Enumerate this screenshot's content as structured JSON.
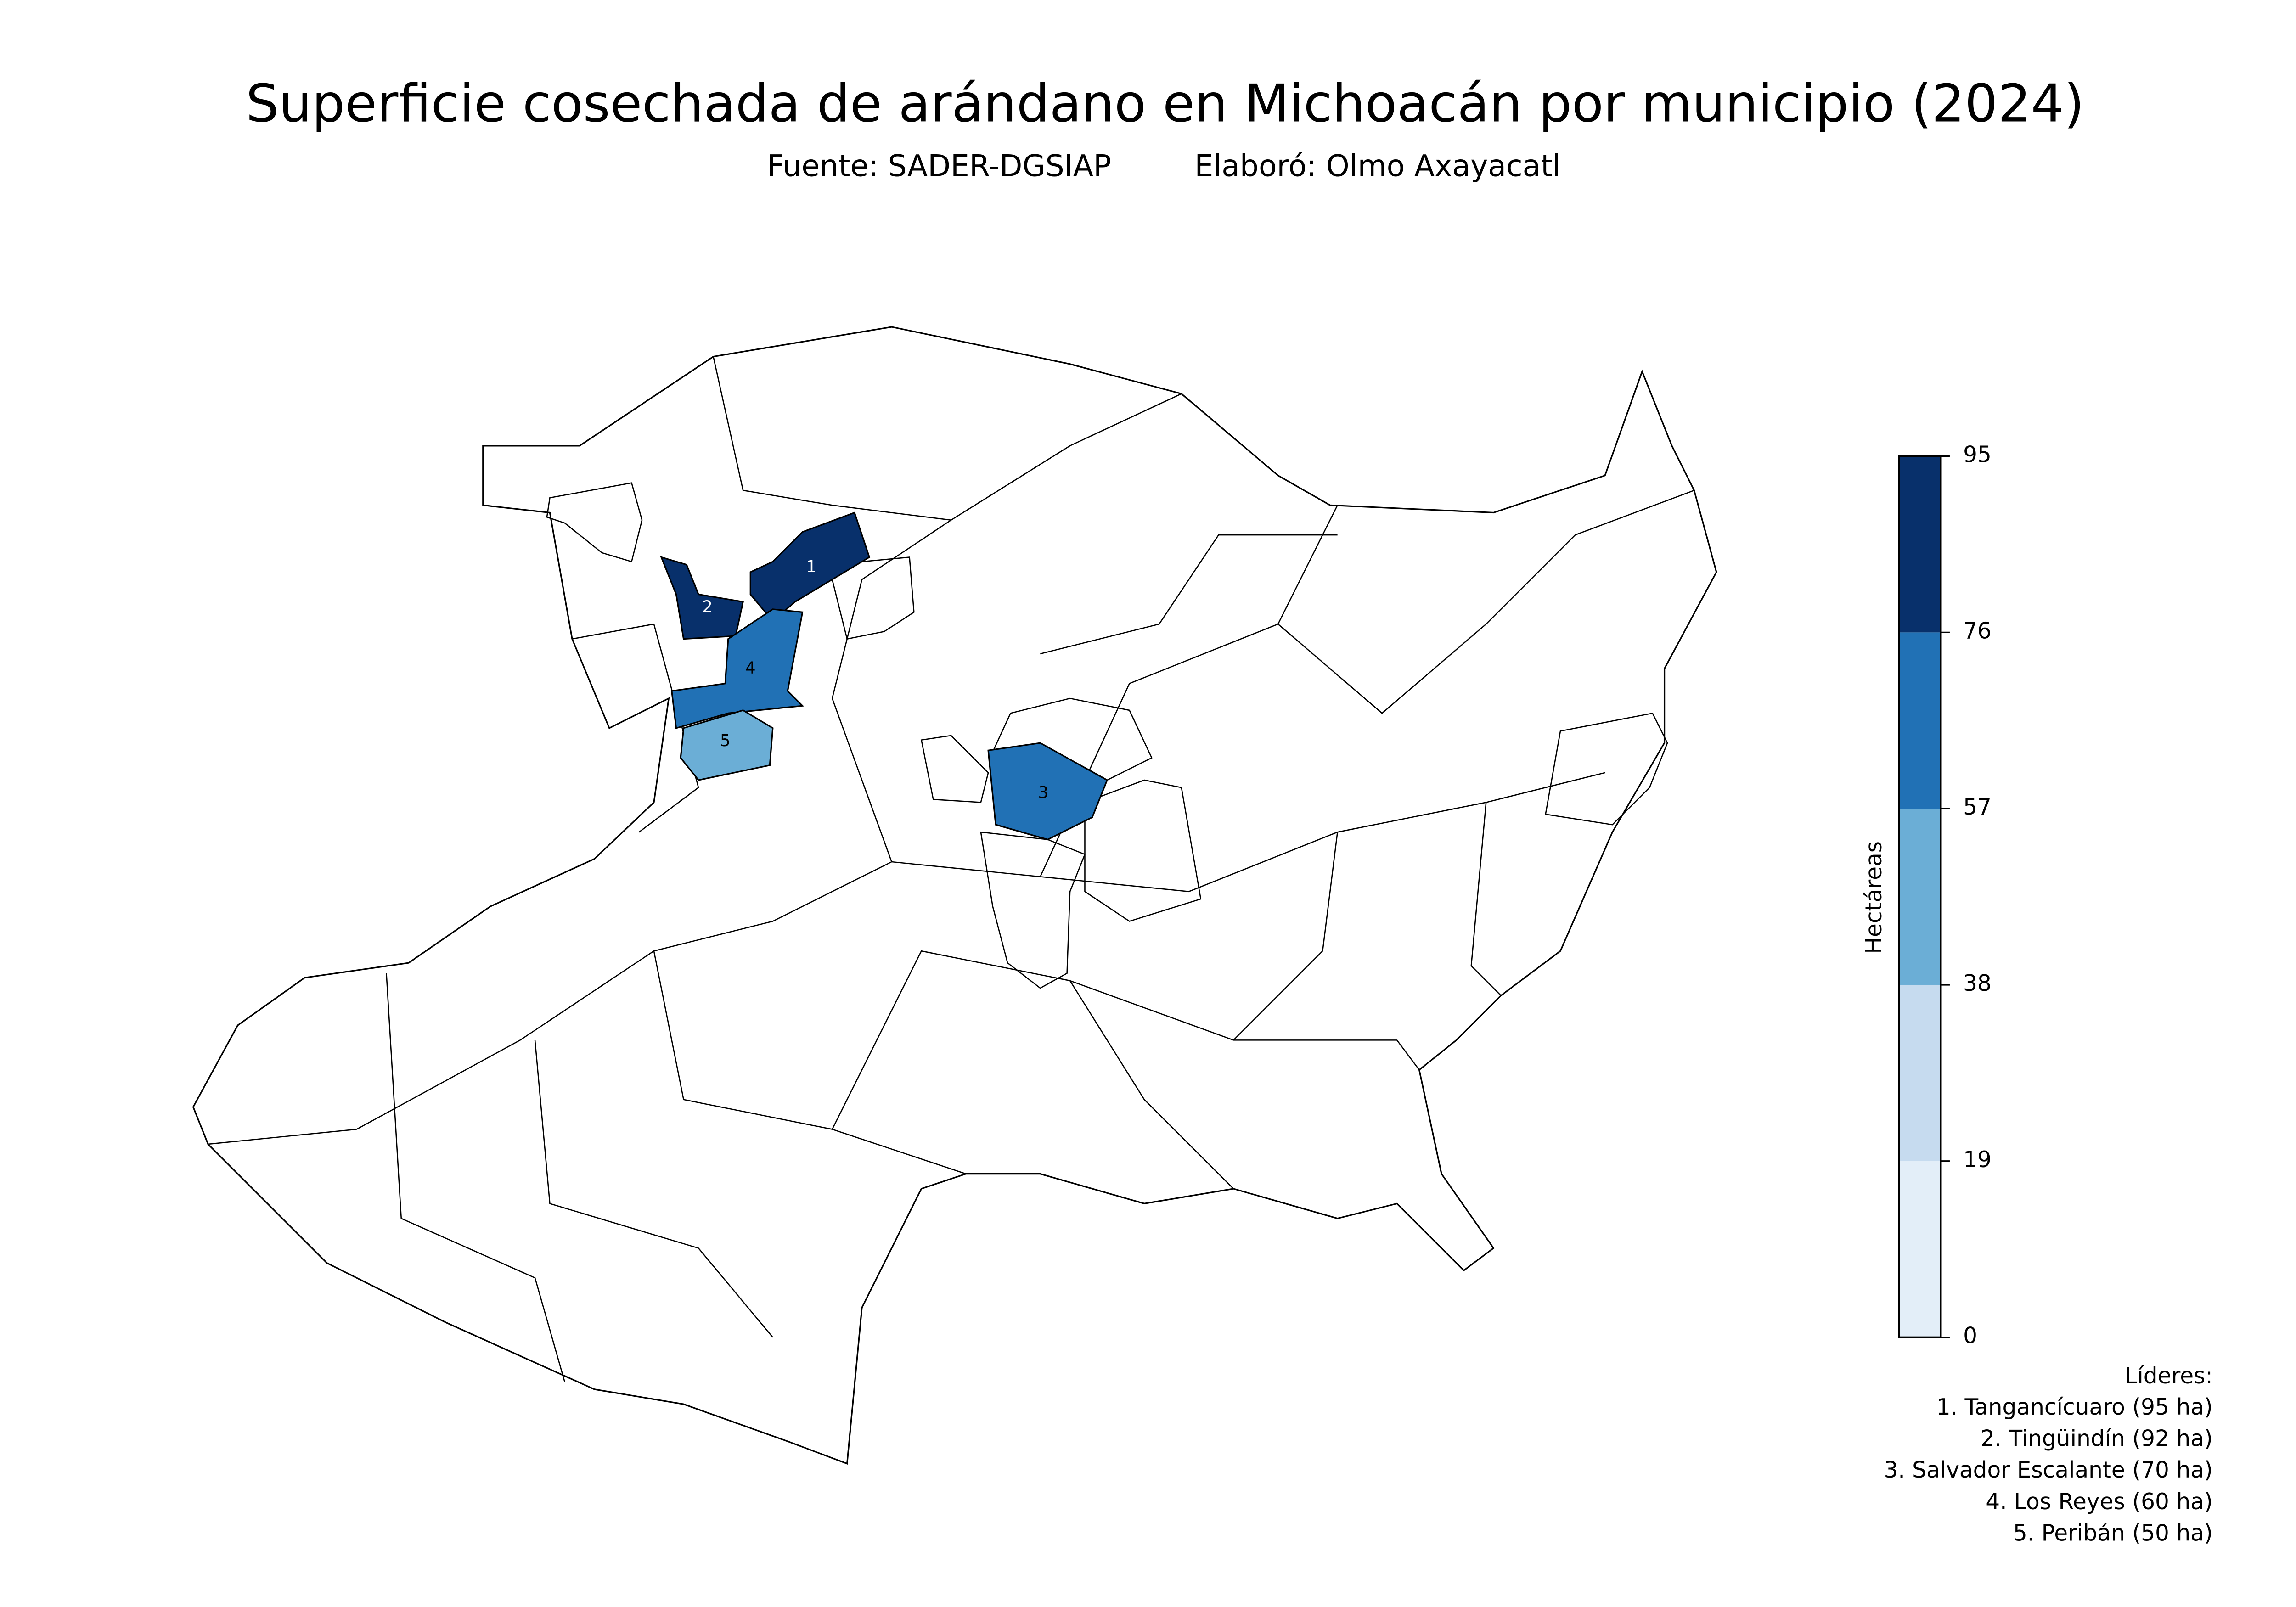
{
  "header": {
    "title": "Superficie cosechada de arándano en Michoacán por municipio (2024)",
    "source": "Fuente: SADER-DGSIAP",
    "author": "Elaboró: Olmo Axayacatl"
  },
  "map": {
    "colorbar": {
      "label": "Hectáreas",
      "ticks": [
        0,
        19,
        38,
        57,
        76,
        95
      ],
      "colors": [
        "#e3eef8",
        "#c6dbef",
        "#6baed6",
        "#2171b5",
        "#08306b"
      ]
    },
    "leaders": {
      "title": "Líderes:",
      "items": [
        {
          "label": "1. Tangancícuaro (95 ha)",
          "value": 95,
          "map_label": "1"
        },
        {
          "label": "2. Tingüindín (92 ha)",
          "value": 92,
          "map_label": "2"
        },
        {
          "label": "3. Salvador Escalante (70 ha)",
          "value": 70,
          "map_label": "3"
        },
        {
          "label": "4. Los Reyes (60 ha)",
          "value": 60,
          "map_label": "4"
        },
        {
          "label": "5. Peribán (50 ha)",
          "value": 50,
          "map_label": "5"
        }
      ]
    }
  }
}
